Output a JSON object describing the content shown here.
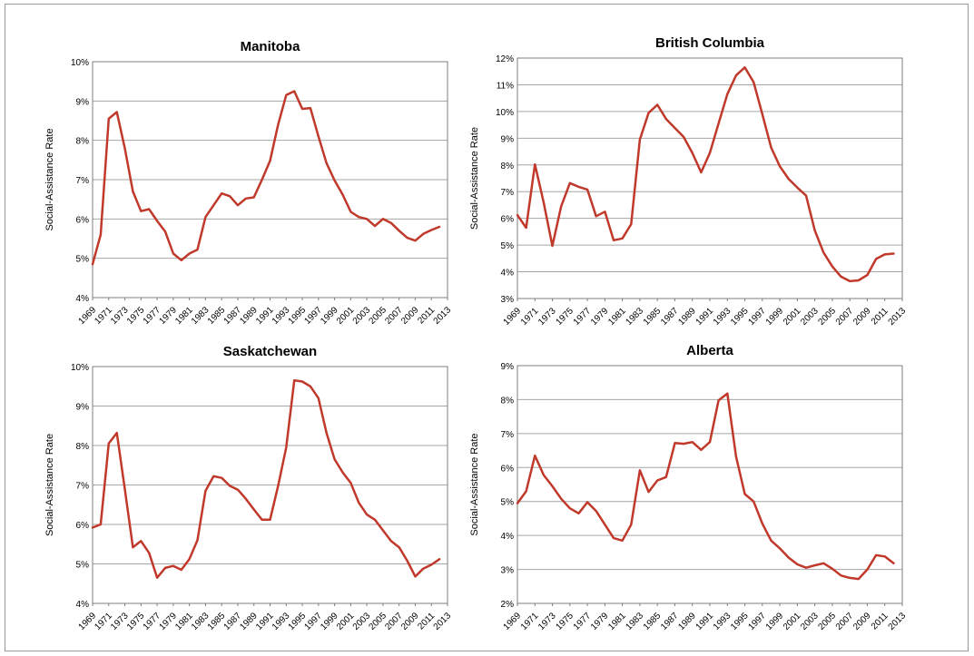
{
  "chart_data": [
    {
      "type": "line",
      "title": "Manitoba",
      "ylabel": "Social-Assistance Rate",
      "ylim": [
        4,
        10
      ],
      "y_ticks": [
        "4%",
        "5%",
        "6%",
        "7%",
        "8%",
        "9%",
        "10%"
      ],
      "x_ticks": [
        "1969",
        "1971",
        "1973",
        "1975",
        "1977",
        "1979",
        "1981",
        "1983",
        "1985",
        "1987",
        "1989",
        "1991",
        "1993",
        "1995",
        "1997",
        "1999",
        "2001",
        "2003",
        "2005",
        "2007",
        "2009",
        "2011",
        "2013"
      ],
      "x": [
        1969,
        1970,
        1971,
        1972,
        1973,
        1974,
        1975,
        1976,
        1977,
        1978,
        1979,
        1980,
        1981,
        1982,
        1983,
        1984,
        1985,
        1986,
        1987,
        1988,
        1989,
        1990,
        1991,
        1992,
        1993,
        1994,
        1995,
        1996,
        1997,
        1998,
        1999,
        2000,
        2001,
        2002,
        2003,
        2004,
        2005,
        2006,
        2007,
        2008,
        2009,
        2010,
        2011,
        2012
      ],
      "series": [
        {
          "values": [
            4.85,
            5.6,
            8.55,
            8.72,
            7.8,
            6.7,
            6.2,
            6.25,
            5.95,
            5.68,
            5.12,
            4.95,
            5.12,
            5.22,
            6.05,
            6.35,
            6.65,
            6.58,
            6.35,
            6.52,
            6.55,
            7.0,
            7.48,
            8.4,
            9.15,
            9.25,
            8.8,
            8.82,
            8.1,
            7.42,
            6.98,
            6.62,
            6.18,
            6.05,
            6.0,
            5.82,
            6.0,
            5.9,
            5.7,
            5.52,
            5.45,
            5.62,
            5.72,
            5.8
          ]
        }
      ]
    },
    {
      "type": "line",
      "title": "British Columbia",
      "ylabel": "Social-Assistance Rate",
      "ylim": [
        3,
        12
      ],
      "y_ticks": [
        "3%",
        "4%",
        "5%",
        "6%",
        "7%",
        "8%",
        "9%",
        "10%",
        "11%",
        "12%"
      ],
      "x_ticks": [
        "1969",
        "1971",
        "1973",
        "1975",
        "1977",
        "1979",
        "1981",
        "1983",
        "1985",
        "1987",
        "1989",
        "1991",
        "1993",
        "1995",
        "1997",
        "1999",
        "2001",
        "2003",
        "2005",
        "2007",
        "2009",
        "2011",
        "2013"
      ],
      "x": [
        1969,
        1970,
        1971,
        1972,
        1973,
        1974,
        1975,
        1976,
        1977,
        1978,
        1979,
        1980,
        1981,
        1982,
        1983,
        1984,
        1985,
        1986,
        1987,
        1988,
        1989,
        1990,
        1991,
        1992,
        1993,
        1994,
        1995,
        1996,
        1997,
        1998,
        1999,
        2000,
        2001,
        2002,
        2003,
        2004,
        2005,
        2006,
        2007,
        2008,
        2009,
        2010,
        2011,
        2012
      ],
      "series": [
        {
          "values": [
            6.12,
            5.65,
            8.02,
            6.6,
            4.97,
            6.45,
            7.32,
            7.18,
            7.08,
            6.08,
            6.25,
            5.18,
            5.25,
            5.78,
            8.95,
            9.95,
            10.25,
            9.72,
            9.38,
            9.05,
            8.45,
            7.72,
            8.45,
            9.55,
            10.65,
            11.35,
            11.65,
            11.1,
            9.9,
            8.65,
            7.95,
            7.48,
            7.15,
            6.85,
            5.55,
            4.72,
            4.2,
            3.82,
            3.65,
            3.68,
            3.88,
            4.48,
            4.65,
            4.68
          ]
        }
      ]
    },
    {
      "type": "line",
      "title": "Saskatchewan",
      "ylabel": "Social-Assistance Rate",
      "ylim": [
        4,
        10
      ],
      "y_ticks": [
        "4%",
        "5%",
        "6%",
        "7%",
        "8%",
        "9%",
        "10%"
      ],
      "x_ticks": [
        "1969",
        "1971",
        "1973",
        "1975",
        "1977",
        "1979",
        "1981",
        "1983",
        "1985",
        "1987",
        "1989",
        "1991",
        "1993",
        "1995",
        "1997",
        "1999",
        "2001",
        "2003",
        "2005",
        "2007",
        "2009",
        "2011",
        "2013"
      ],
      "x": [
        1969,
        1970,
        1971,
        1972,
        1973,
        1974,
        1975,
        1976,
        1977,
        1978,
        1979,
        1980,
        1981,
        1982,
        1983,
        1984,
        1985,
        1986,
        1987,
        1988,
        1989,
        1990,
        1991,
        1992,
        1993,
        1994,
        1995,
        1996,
        1997,
        1998,
        1999,
        2000,
        2001,
        2002,
        2003,
        2004,
        2005,
        2006,
        2007,
        2008,
        2009,
        2010,
        2011,
        2012
      ],
      "series": [
        {
          "values": [
            5.92,
            6.0,
            8.05,
            8.32,
            6.9,
            5.42,
            5.58,
            5.28,
            4.65,
            4.9,
            4.95,
            4.85,
            5.12,
            5.6,
            6.85,
            7.22,
            7.18,
            6.98,
            6.88,
            6.65,
            6.38,
            6.12,
            6.12,
            6.98,
            7.95,
            9.65,
            9.62,
            9.5,
            9.2,
            8.32,
            7.65,
            7.32,
            7.05,
            6.55,
            6.25,
            6.12,
            5.85,
            5.58,
            5.42,
            5.08,
            4.68,
            4.88,
            4.98,
            5.12
          ]
        }
      ]
    },
    {
      "type": "line",
      "title": "Alberta",
      "ylabel": "Social-Assistance Rate",
      "ylim": [
        2,
        9
      ],
      "y_ticks": [
        "2%",
        "3%",
        "4%",
        "5%",
        "6%",
        "7%",
        "8%",
        "9%"
      ],
      "x_ticks": [
        "1969",
        "1971",
        "1973",
        "1975",
        "1977",
        "1979",
        "1981",
        "1983",
        "1985",
        "1987",
        "1989",
        "1991",
        "1993",
        "1995",
        "1997",
        "1999",
        "2001",
        "2003",
        "2005",
        "2007",
        "2009",
        "2011",
        "2013"
      ],
      "x": [
        1969,
        1970,
        1971,
        1972,
        1973,
        1974,
        1975,
        1976,
        1977,
        1978,
        1979,
        1980,
        1981,
        1982,
        1983,
        1984,
        1985,
        1986,
        1987,
        1988,
        1989,
        1990,
        1991,
        1992,
        1993,
        1994,
        1995,
        1996,
        1997,
        1998,
        1999,
        2000,
        2001,
        2002,
        2003,
        2004,
        2005,
        2006,
        2007,
        2008,
        2009,
        2010,
        2011,
        2012
      ],
      "series": [
        {
          "values": [
            4.95,
            5.3,
            6.35,
            5.78,
            5.45,
            5.08,
            4.8,
            4.65,
            4.98,
            4.72,
            4.32,
            3.92,
            3.85,
            4.32,
            5.92,
            5.28,
            5.62,
            5.72,
            6.72,
            6.7,
            6.75,
            6.52,
            6.75,
            7.98,
            8.18,
            6.32,
            5.22,
            5.0,
            4.35,
            3.85,
            3.62,
            3.35,
            3.15,
            3.05,
            3.12,
            3.18,
            3.02,
            2.82,
            2.75,
            2.72,
            3.0,
            3.42,
            3.38,
            3.18
          ]
        }
      ]
    }
  ]
}
